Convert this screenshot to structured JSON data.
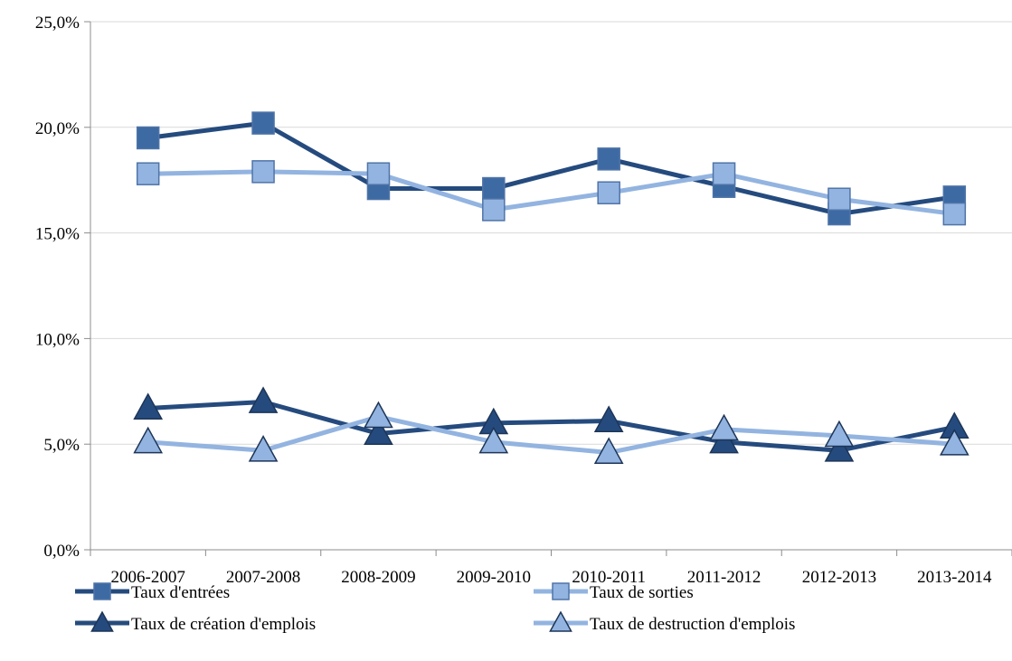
{
  "chart_data": {
    "type": "line",
    "title": "",
    "xlabel": "",
    "ylabel": "",
    "categories": [
      "2006-2007",
      "2007-2008",
      "2008-2009",
      "2009-2010",
      "2010-2011",
      "2011-2012",
      "2012-2013",
      "2013-2014"
    ],
    "ylim": [
      0,
      25
    ],
    "yticks": [
      0,
      5,
      10,
      15,
      20,
      25
    ],
    "ytick_labels": [
      "0,0%",
      "5,0%",
      "10,0%",
      "15,0%",
      "20,0%",
      "25,0%"
    ],
    "grid": true,
    "legend_position": "bottom",
    "series": [
      {
        "name": "Taux d'entrées",
        "marker": "square",
        "color": "#254b7e",
        "marker_fill": "#3d6aa3",
        "values": [
          19.5,
          20.2,
          17.1,
          17.1,
          18.5,
          17.2,
          15.9,
          16.7
        ]
      },
      {
        "name": "Taux de sorties",
        "marker": "square",
        "color": "#93b4e0",
        "marker_fill": "#93b4e0",
        "values": [
          17.8,
          17.9,
          17.8,
          16.1,
          16.9,
          17.8,
          16.6,
          15.9
        ]
      },
      {
        "name": "Taux de création d'emplois",
        "marker": "triangle",
        "color": "#254b7e",
        "marker_fill": "#254b7e",
        "values": [
          6.7,
          7.0,
          5.5,
          6.0,
          6.1,
          5.1,
          4.7,
          5.8
        ]
      },
      {
        "name": "Taux de destruction d'emplois",
        "marker": "triangle",
        "color": "#93b4e0",
        "marker_fill": "#93b4e0",
        "values": [
          5.1,
          4.7,
          6.3,
          5.1,
          4.6,
          5.7,
          5.4,
          5.0
        ]
      }
    ]
  }
}
